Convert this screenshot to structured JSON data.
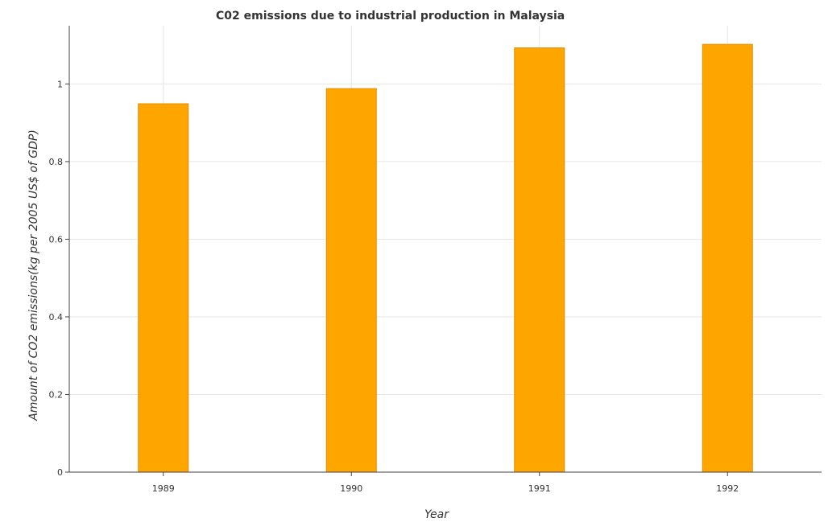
{
  "chart_data": {
    "type": "bar",
    "title": "C02 emissions due to industrial production in Malaysia",
    "xlabel": "Year",
    "ylabel": "Amount of CO2 emissions(kg per 2005 US$ of GDP)",
    "categories": [
      "1989",
      "1990",
      "1991",
      "1992"
    ],
    "values": [
      0.949,
      0.988,
      1.093,
      1.102
    ],
    "ylim": [
      0,
      1.15
    ],
    "yticks": [
      0,
      0.2,
      0.4,
      0.6,
      0.8,
      1.0
    ],
    "ytick_labels": [
      "0",
      "0.2",
      "0.4",
      "0.6",
      "0.8",
      "1"
    ],
    "grid": true,
    "bar_color": "#FFA500",
    "bar_edge_color": "#E08E00"
  }
}
